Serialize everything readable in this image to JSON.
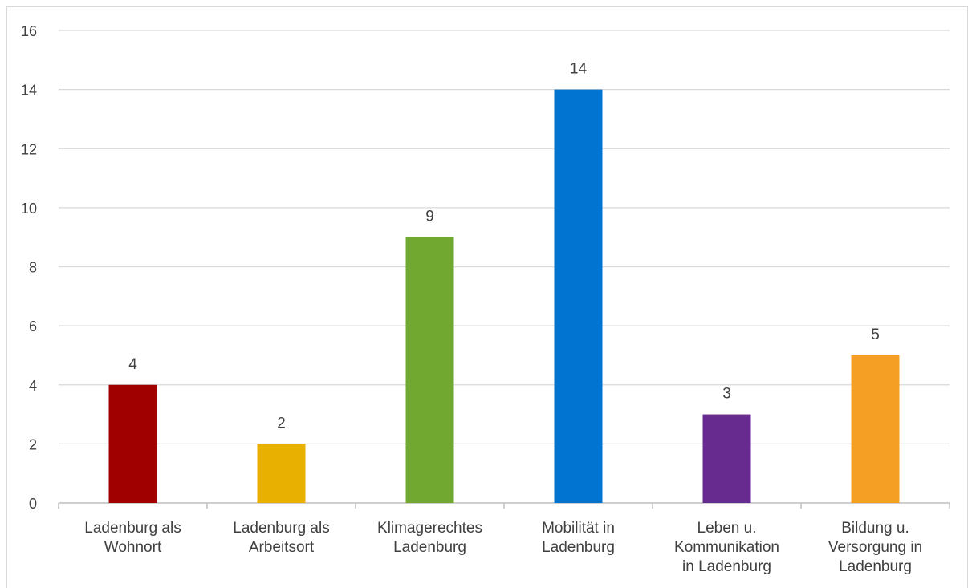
{
  "chart_data": {
    "type": "bar",
    "title": "",
    "xlabel": "",
    "ylabel": "",
    "ylim": [
      0,
      16
    ],
    "y_ticks": [
      0,
      2,
      4,
      6,
      8,
      10,
      12,
      14,
      16
    ],
    "grid": true,
    "legend": "none",
    "data_labels": true,
    "categories": [
      [
        "Ladenburg als",
        "Wohnort"
      ],
      [
        "Ladenburg als",
        "Arbeitsort"
      ],
      [
        "Klimagerechtes",
        "Ladenburg"
      ],
      [
        "Mobilität in",
        "Ladenburg"
      ],
      [
        "Leben u.",
        "Kommunikation",
        "in Ladenburg"
      ],
      [
        "Bildung u.",
        "Versorgung in",
        "Ladenburg"
      ]
    ],
    "values": [
      4,
      2,
      9,
      14,
      3,
      5
    ],
    "colors": [
      "#a00000",
      "#e8b000",
      "#70a830",
      "#0074d0",
      "#672a8e",
      "#f5a024"
    ]
  }
}
